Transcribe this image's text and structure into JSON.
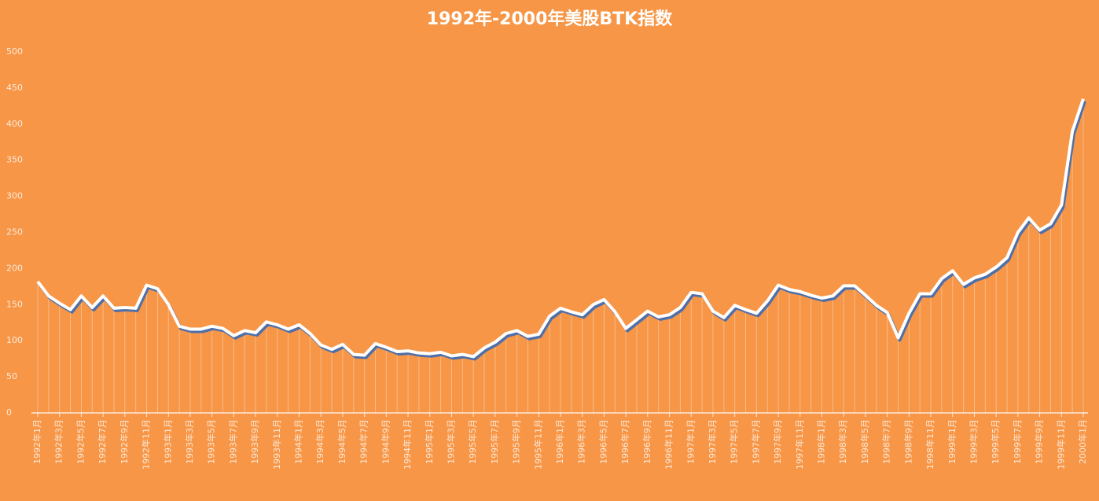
{
  "chart_data": {
    "type": "line",
    "title": "1992年-2000年美股BTK指数",
    "categories": [
      "1992年1月",
      null,
      "1992年3月",
      null,
      "1992年5月",
      null,
      "1992年7月",
      null,
      "1992年9月",
      null,
      "1992年11月",
      null,
      "1993年1月",
      null,
      "1993年3月",
      null,
      "1993年5月",
      null,
      "1993年7月",
      null,
      "1993年9月",
      null,
      "1993年11月",
      null,
      "1994年1月",
      null,
      "1994年3月",
      null,
      "1994年5月",
      null,
      "1994年7月",
      null,
      "1994年9月",
      null,
      "1994年11月",
      null,
      "1995年1月",
      null,
      "1995年3月",
      null,
      "1995年5月",
      null,
      "1995年7月",
      null,
      "1995年9月",
      null,
      "1995年11月",
      null,
      "1996年1月",
      null,
      "1996年3月",
      null,
      "1996年5月",
      null,
      "1996年7月",
      null,
      "1996年9月",
      null,
      "1996年11月",
      null,
      "1997年1月",
      null,
      "1997年3月",
      null,
      "1997年5月",
      null,
      "1997年7月",
      null,
      "1997年9月",
      null,
      "1997年11月",
      null,
      "1998年1月",
      null,
      "1998年3月",
      null,
      "1998年5月",
      null,
      "1998年7月",
      null,
      "1998年9月",
      null,
      "1998年11月",
      null,
      "1999年1月",
      null,
      "1999年3月",
      null,
      "1999年5月",
      null,
      "1999年7月",
      null,
      "1999年9月",
      null,
      "1999年11月",
      null,
      "2000年1月"
    ],
    "values": [
      182,
      162,
      152,
      143,
      162,
      146,
      162,
      145,
      146,
      145,
      177,
      172,
      150,
      120,
      116,
      116,
      120,
      117,
      107,
      114,
      111,
      126,
      122,
      116,
      122,
      110,
      94,
      88,
      95,
      81,
      80,
      96,
      91,
      85,
      86,
      83,
      82,
      84,
      79,
      81,
      78,
      90,
      98,
      110,
      114,
      106,
      109,
      134,
      145,
      140,
      136,
      150,
      157,
      140,
      117,
      129,
      141,
      133,
      136,
      146,
      167,
      165,
      141,
      132,
      149,
      143,
      138,
      155,
      177,
      171,
      168,
      163,
      159,
      162,
      176,
      176,
      163,
      149,
      139,
      104,
      138,
      165,
      165,
      186,
      197,
      178,
      187,
      192,
      202,
      215,
      250,
      270,
      253,
      262,
      288,
      390,
      435
    ],
    "color": "#ffffff",
    "ylim": [
      0,
      500
    ],
    "yticks": [
      0,
      50,
      100,
      150,
      200,
      250,
      300,
      350,
      400,
      450,
      500
    ]
  }
}
